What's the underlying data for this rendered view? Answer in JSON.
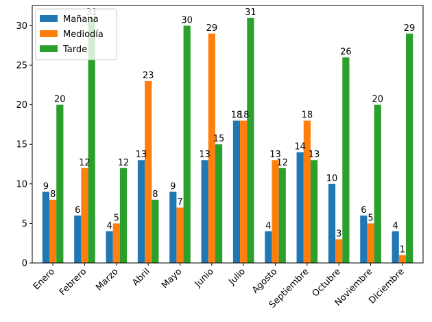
{
  "chart_data": {
    "type": "bar",
    "categories": [
      "Enero",
      "Febrero",
      "Marzo",
      "Abril",
      "Mayo",
      "Junio",
      "Julio",
      "Agosto",
      "Septiembre",
      "Octubre",
      "Noviembre",
      "Diciembre"
    ],
    "series": [
      {
        "name": "Mañana",
        "color": "#1f77b4",
        "values": [
          9,
          6,
          4,
          13,
          9,
          13,
          18,
          4,
          14,
          10,
          6,
          4
        ]
      },
      {
        "name": "Mediodía",
        "color": "#ff7f0e",
        "values": [
          8,
          12,
          5,
          23,
          7,
          29,
          18,
          13,
          18,
          3,
          5,
          1
        ]
      },
      {
        "name": "Tarde",
        "color": "#2ca02c",
        "values": [
          20,
          31,
          12,
          8,
          30,
          15,
          31,
          12,
          13,
          26,
          20,
          29
        ]
      }
    ],
    "ylim": [
      0,
      32.55
    ],
    "yticks": [
      0,
      5,
      10,
      15,
      20,
      25,
      30
    ],
    "xlabel": "",
    "ylabel": "",
    "title": "",
    "legend_position": "top-left",
    "grid": false,
    "xtick_rotation": 45
  }
}
